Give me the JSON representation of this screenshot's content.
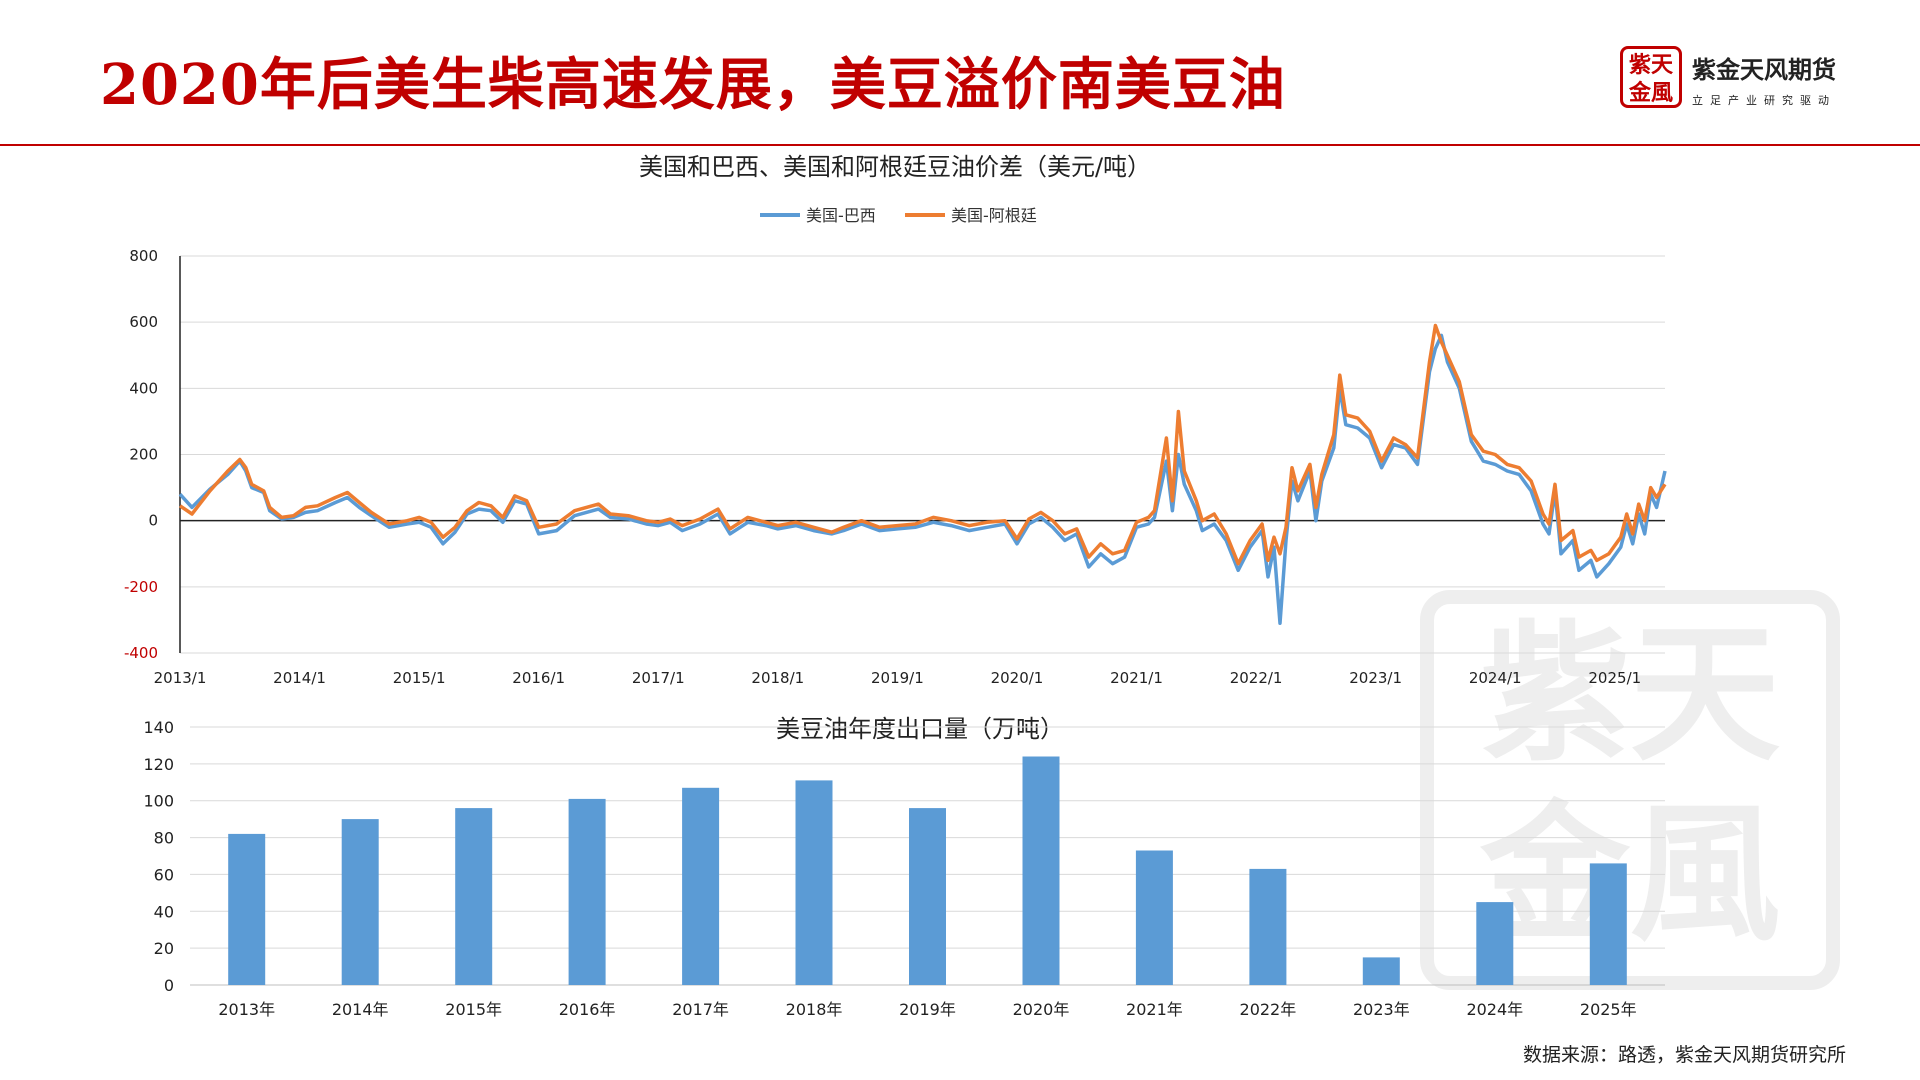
{
  "header": {
    "title": "2020年后美生柴高速发展，美豆溢价南美豆油",
    "logo_seal_text": "紫天金風",
    "logo_name": "紫金天风期货",
    "logo_slogan": "立足产业研究驱动"
  },
  "source_note": "数据来源：路透，紫金天风期货研究所",
  "colors": {
    "brand_red": "#c00000",
    "series_blue": "#5b9bd5",
    "series_orange": "#ed7d31",
    "bar_blue": "#5b9bd5"
  },
  "chart_data": [
    {
      "type": "line",
      "title": "美国和巴西、美国和阿根廷豆油价差（美元/吨）",
      "ylim": [
        -400,
        800
      ],
      "yticks": [
        "800",
        "600",
        "400",
        "200",
        "0",
        "-200",
        "-400"
      ],
      "x_tick_labels": [
        "2013/1",
        "2014/1",
        "2015/1",
        "2016/1",
        "2017/1",
        "2018/1",
        "2019/1",
        "2020/1",
        "2021/1",
        "2022/1",
        "2023/1",
        "2024/1",
        "2025/1"
      ],
      "x_range": [
        2013.0,
        2025.42
      ],
      "legend_position": "top",
      "grid": true,
      "series": [
        {
          "name": "美国-巴西",
          "color": "#5b9bd5",
          "points": [
            [
              2013.0,
              80
            ],
            [
              2013.1,
              40
            ],
            [
              2013.25,
              95
            ],
            [
              2013.4,
              140
            ],
            [
              2013.5,
              180
            ],
            [
              2013.55,
              150
            ],
            [
              2013.6,
              100
            ],
            [
              2013.7,
              85
            ],
            [
              2013.75,
              30
            ],
            [
              2013.85,
              5
            ],
            [
              2013.95,
              10
            ],
            [
              2014.05,
              25
            ],
            [
              2014.15,
              30
            ],
            [
              2014.3,
              55
            ],
            [
              2014.4,
              70
            ],
            [
              2014.5,
              40
            ],
            [
              2014.6,
              15
            ],
            [
              2014.75,
              -20
            ],
            [
              2014.9,
              -10
            ],
            [
              2015.0,
              -5
            ],
            [
              2015.1,
              -20
            ],
            [
              2015.2,
              -70
            ],
            [
              2015.3,
              -35
            ],
            [
              2015.4,
              20
            ],
            [
              2015.5,
              35
            ],
            [
              2015.6,
              30
            ],
            [
              2015.7,
              -5
            ],
            [
              2015.8,
              60
            ],
            [
              2015.9,
              50
            ],
            [
              2016.0,
              -40
            ],
            [
              2016.15,
              -30
            ],
            [
              2016.3,
              15
            ],
            [
              2016.5,
              35
            ],
            [
              2016.6,
              10
            ],
            [
              2016.75,
              5
            ],
            [
              2016.9,
              -10
            ],
            [
              2017.0,
              -15
            ],
            [
              2017.1,
              -5
            ],
            [
              2017.2,
              -30
            ],
            [
              2017.35,
              -10
            ],
            [
              2017.5,
              20
            ],
            [
              2017.6,
              -40
            ],
            [
              2017.75,
              -5
            ],
            [
              2017.9,
              -15
            ],
            [
              2018.0,
              -25
            ],
            [
              2018.15,
              -15
            ],
            [
              2018.3,
              -30
            ],
            [
              2018.45,
              -40
            ],
            [
              2018.55,
              -30
            ],
            [
              2018.7,
              -10
            ],
            [
              2018.85,
              -30
            ],
            [
              2019.0,
              -25
            ],
            [
              2019.15,
              -20
            ],
            [
              2019.3,
              -5
            ],
            [
              2019.45,
              -15
            ],
            [
              2019.6,
              -30
            ],
            [
              2019.75,
              -20
            ],
            [
              2019.9,
              -10
            ],
            [
              2020.0,
              -70
            ],
            [
              2020.1,
              -10
            ],
            [
              2020.2,
              10
            ],
            [
              2020.3,
              -20
            ],
            [
              2020.4,
              -60
            ],
            [
              2020.5,
              -40
            ],
            [
              2020.6,
              -140
            ],
            [
              2020.7,
              -100
            ],
            [
              2020.8,
              -130
            ],
            [
              2020.9,
              -110
            ],
            [
              2021.0,
              -20
            ],
            [
              2021.1,
              -10
            ],
            [
              2021.15,
              10
            ],
            [
              2021.25,
              180
            ],
            [
              2021.3,
              30
            ],
            [
              2021.35,
              200
            ],
            [
              2021.4,
              110
            ],
            [
              2021.5,
              30
            ],
            [
              2021.55,
              -30
            ],
            [
              2021.65,
              -10
            ],
            [
              2021.75,
              -60
            ],
            [
              2021.85,
              -150
            ],
            [
              2021.95,
              -80
            ],
            [
              2022.05,
              -30
            ],
            [
              2022.1,
              -170
            ],
            [
              2022.15,
              -80
            ],
            [
              2022.2,
              -310
            ],
            [
              2022.25,
              -60
            ],
            [
              2022.3,
              120
            ],
            [
              2022.35,
              60
            ],
            [
              2022.45,
              150
            ],
            [
              2022.5,
              0
            ],
            [
              2022.55,
              120
            ],
            [
              2022.65,
              220
            ],
            [
              2022.7,
              400
            ],
            [
              2022.75,
              290
            ],
            [
              2022.85,
              280
            ],
            [
              2022.95,
              250
            ],
            [
              2023.05,
              160
            ],
            [
              2023.15,
              230
            ],
            [
              2023.25,
              220
            ],
            [
              2023.35,
              170
            ],
            [
              2023.45,
              450
            ],
            [
              2023.5,
              520
            ],
            [
              2023.55,
              560
            ],
            [
              2023.6,
              480
            ],
            [
              2023.7,
              400
            ],
            [
              2023.8,
              240
            ],
            [
              2023.9,
              180
            ],
            [
              2024.0,
              170
            ],
            [
              2024.1,
              150
            ],
            [
              2024.2,
              140
            ],
            [
              2024.3,
              90
            ],
            [
              2024.4,
              -10
            ],
            [
              2024.45,
              -40
            ],
            [
              2024.5,
              90
            ],
            [
              2024.55,
              -100
            ],
            [
              2024.65,
              -60
            ],
            [
              2024.7,
              -150
            ],
            [
              2024.8,
              -120
            ],
            [
              2024.85,
              -170
            ],
            [
              2024.95,
              -130
            ],
            [
              2025.05,
              -80
            ],
            [
              2025.1,
              -10
            ],
            [
              2025.15,
              -70
            ],
            [
              2025.2,
              20
            ],
            [
              2025.25,
              -40
            ],
            [
              2025.3,
              80
            ],
            [
              2025.35,
              40
            ],
            [
              2025.42,
              150
            ]
          ]
        },
        {
          "name": "美国-阿根廷",
          "color": "#ed7d31",
          "points": [
            [
              2013.0,
              45
            ],
            [
              2013.1,
              20
            ],
            [
              2013.25,
              90
            ],
            [
              2013.4,
              150
            ],
            [
              2013.5,
              185
            ],
            [
              2013.55,
              160
            ],
            [
              2013.6,
              110
            ],
            [
              2013.7,
              90
            ],
            [
              2013.75,
              40
            ],
            [
              2013.85,
              10
            ],
            [
              2013.95,
              15
            ],
            [
              2014.05,
              40
            ],
            [
              2014.15,
              45
            ],
            [
              2014.3,
              70
            ],
            [
              2014.4,
              85
            ],
            [
              2014.5,
              55
            ],
            [
              2014.6,
              25
            ],
            [
              2014.75,
              -10
            ],
            [
              2014.9,
              0
            ],
            [
              2015.0,
              10
            ],
            [
              2015.1,
              -5
            ],
            [
              2015.2,
              -50
            ],
            [
              2015.3,
              -20
            ],
            [
              2015.4,
              30
            ],
            [
              2015.5,
              55
            ],
            [
              2015.6,
              45
            ],
            [
              2015.7,
              10
            ],
            [
              2015.8,
              75
            ],
            [
              2015.9,
              60
            ],
            [
              2016.0,
              -20
            ],
            [
              2016.15,
              -10
            ],
            [
              2016.3,
              30
            ],
            [
              2016.5,
              50
            ],
            [
              2016.6,
              20
            ],
            [
              2016.75,
              15
            ],
            [
              2016.9,
              0
            ],
            [
              2017.0,
              -5
            ],
            [
              2017.1,
              5
            ],
            [
              2017.2,
              -15
            ],
            [
              2017.35,
              5
            ],
            [
              2017.5,
              35
            ],
            [
              2017.6,
              -25
            ],
            [
              2017.75,
              10
            ],
            [
              2017.9,
              -5
            ],
            [
              2018.0,
              -15
            ],
            [
              2018.15,
              -5
            ],
            [
              2018.3,
              -20
            ],
            [
              2018.45,
              -35
            ],
            [
              2018.55,
              -20
            ],
            [
              2018.7,
              0
            ],
            [
              2018.85,
              -20
            ],
            [
              2019.0,
              -15
            ],
            [
              2019.15,
              -10
            ],
            [
              2019.3,
              10
            ],
            [
              2019.45,
              0
            ],
            [
              2019.6,
              -15
            ],
            [
              2019.75,
              -5
            ],
            [
              2019.9,
              0
            ],
            [
              2020.0,
              -55
            ],
            [
              2020.1,
              5
            ],
            [
              2020.2,
              25
            ],
            [
              2020.3,
              0
            ],
            [
              2020.4,
              -40
            ],
            [
              2020.5,
              -25
            ],
            [
              2020.6,
              -110
            ],
            [
              2020.7,
              -70
            ],
            [
              2020.8,
              -100
            ],
            [
              2020.9,
              -90
            ],
            [
              2021.0,
              -5
            ],
            [
              2021.1,
              10
            ],
            [
              2021.15,
              30
            ],
            [
              2021.25,
              250
            ],
            [
              2021.3,
              60
            ],
            [
              2021.35,
              330
            ],
            [
              2021.4,
              150
            ],
            [
              2021.5,
              60
            ],
            [
              2021.55,
              0
            ],
            [
              2021.65,
              20
            ],
            [
              2021.75,
              -40
            ],
            [
              2021.85,
              -130
            ],
            [
              2021.95,
              -60
            ],
            [
              2022.05,
              -10
            ],
            [
              2022.1,
              -120
            ],
            [
              2022.15,
              -50
            ],
            [
              2022.2,
              -100
            ],
            [
              2022.25,
              -20
            ],
            [
              2022.3,
              160
            ],
            [
              2022.35,
              90
            ],
            [
              2022.45,
              170
            ],
            [
              2022.5,
              40
            ],
            [
              2022.55,
              140
            ],
            [
              2022.65,
              260
            ],
            [
              2022.7,
              440
            ],
            [
              2022.75,
              320
            ],
            [
              2022.85,
              310
            ],
            [
              2022.95,
              270
            ],
            [
              2023.05,
              180
            ],
            [
              2023.15,
              250
            ],
            [
              2023.25,
              230
            ],
            [
              2023.35,
              190
            ],
            [
              2023.45,
              480
            ],
            [
              2023.5,
              590
            ],
            [
              2023.55,
              540
            ],
            [
              2023.6,
              500
            ],
            [
              2023.7,
              420
            ],
            [
              2023.8,
              260
            ],
            [
              2023.9,
              210
            ],
            [
              2024.0,
              200
            ],
            [
              2024.1,
              170
            ],
            [
              2024.2,
              160
            ],
            [
              2024.3,
              120
            ],
            [
              2024.4,
              20
            ],
            [
              2024.45,
              -10
            ],
            [
              2024.5,
              110
            ],
            [
              2024.55,
              -60
            ],
            [
              2024.65,
              -30
            ],
            [
              2024.7,
              -110
            ],
            [
              2024.8,
              -90
            ],
            [
              2024.85,
              -120
            ],
            [
              2024.95,
              -100
            ],
            [
              2025.05,
              -50
            ],
            [
              2025.1,
              20
            ],
            [
              2025.15,
              -40
            ],
            [
              2025.2,
              50
            ],
            [
              2025.25,
              0
            ],
            [
              2025.3,
              100
            ],
            [
              2025.35,
              70
            ],
            [
              2025.42,
              110
            ]
          ]
        }
      ]
    },
    {
      "type": "bar",
      "title": "美豆油年度出口量（万吨）",
      "categories": [
        "2013年",
        "2014年",
        "2015年",
        "2016年",
        "2017年",
        "2018年",
        "2019年",
        "2020年",
        "2021年",
        "2022年",
        "2023年",
        "2024年",
        "2025年"
      ],
      "values": [
        82,
        90,
        96,
        101,
        107,
        111,
        96,
        124,
        73,
        63,
        15,
        45,
        66
      ],
      "ylim": [
        0,
        140
      ],
      "yticks": [
        "140",
        "120",
        "100",
        "80",
        "60",
        "40",
        "20",
        "0"
      ],
      "grid": true,
      "color": "#5b9bd5"
    }
  ]
}
